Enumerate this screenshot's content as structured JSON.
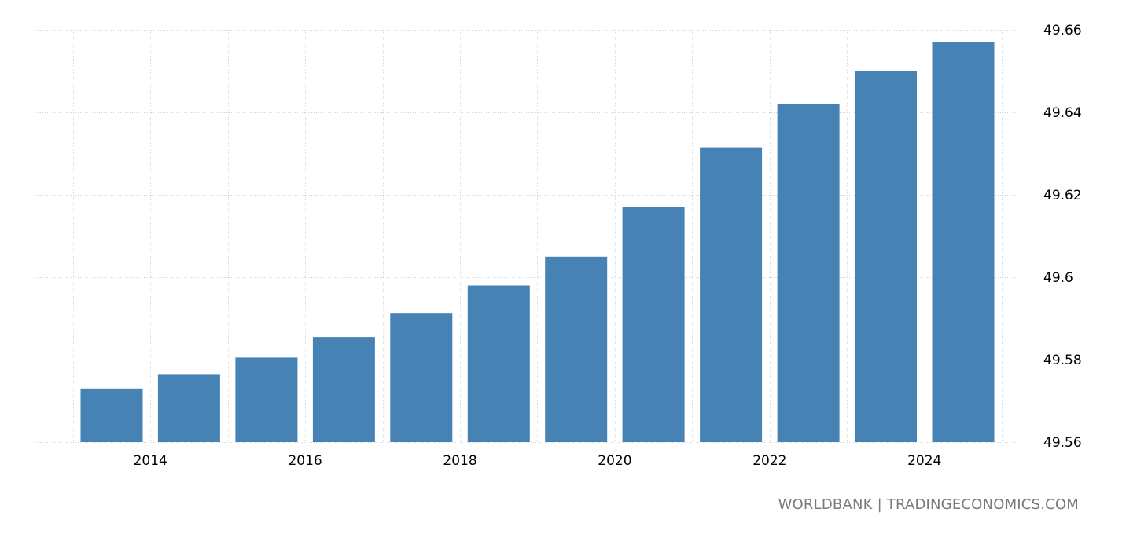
{
  "chart_data": {
    "type": "bar",
    "categories": [
      "2014",
      "2015",
      "2016",
      "2017",
      "2018",
      "2019",
      "2020",
      "2021",
      "2022",
      "2023",
      "2024",
      "2025"
    ],
    "x_tick_labels": [
      "2014",
      "2016",
      "2018",
      "2020",
      "2022",
      "2024"
    ],
    "values": [
      49.573,
      49.5765,
      49.5805,
      49.5855,
      49.5912,
      49.598,
      49.605,
      49.617,
      49.6315,
      49.642,
      49.65,
      49.657
    ],
    "y_ticks": [
      49.56,
      49.58,
      49.6,
      49.62,
      49.64,
      49.66
    ],
    "y_tick_labels": [
      "49.56",
      "49.58",
      "49.6",
      "49.62",
      "49.64",
      "49.66"
    ],
    "ylim": [
      49.56,
      49.66
    ],
    "y_axis_position": "right",
    "grid": true,
    "bar_color": "#4682b4",
    "title": "",
    "xlabel": "",
    "ylabel": ""
  },
  "source": "WORLDBANK | TRADINGECONOMICS.COM"
}
